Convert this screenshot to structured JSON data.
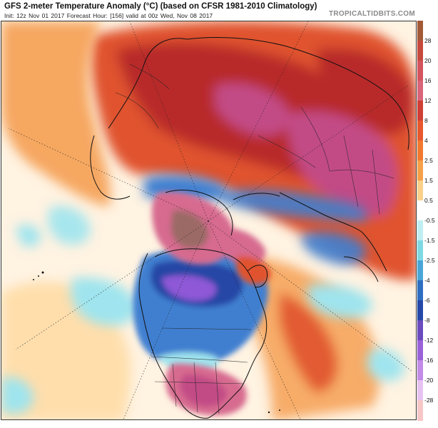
{
  "header": {
    "title": "GFS 2-meter Temperature Anomaly (°C) (based on CFSR 1981-2010 Climatology)",
    "subtitle": "Init: 12z Nov 01 2017   Forecast Hour: [156]   valid at 00z Wed, Nov 08 2017",
    "brand": "TROPICALTIDBITS.COM"
  },
  "colorbar": {
    "labels": [
      "28",
      "20",
      "16",
      "12",
      "8",
      "4",
      "2.5",
      "1.5",
      "0.5",
      "-0.5",
      "-1.5",
      "-2.5",
      "-4",
      "-6",
      "-8",
      "-12",
      "-16",
      "-20",
      "-28"
    ],
    "colors": [
      "#a35a36",
      "#c64a3e",
      "#d4545e",
      "#d9657a",
      "#cf3f35",
      "#e8582e",
      "#f27a30",
      "#f6a04a",
      "#fbd08a",
      "#ffffff",
      "#bfeef2",
      "#7fd9e3",
      "#4aa6d8",
      "#2f6fc2",
      "#2548a8",
      "#6b4bbf",
      "#9a62d9",
      "#c38ce8",
      "#e6c2f2",
      "#f7c6c6"
    ]
  },
  "map": {
    "projection": "north-polar-stereographic",
    "colors": {
      "warm_deep": "#b8292a",
      "warm": "#e0522d",
      "warm_light": "#f59a4a",
      "neutral": "#fff6e8",
      "cool_light": "#9fe4ee",
      "cool": "#3f7fd0",
      "cool_deep": "#2546a6",
      "purple": "#8e58d6",
      "pink": "#d76a8f",
      "magenta": "#c24b86",
      "brown": "#9c6a66"
    },
    "icons": [
      "graticule-lines",
      "coastlines",
      "political-borders"
    ]
  }
}
